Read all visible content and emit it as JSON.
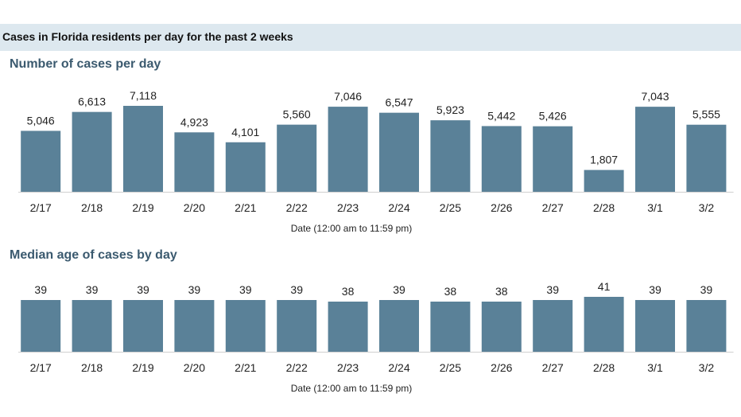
{
  "header": {
    "title": "Cases in Florida residents per day for the past 2 weeks"
  },
  "colors": {
    "bar": "#5a8198",
    "header_band": "#dde8ef",
    "section_title": "#3b5a6f"
  },
  "chart_data": [
    {
      "type": "bar",
      "title": "Number of cases per day",
      "xlabel": "Date (12:00 am to 11:59 pm)",
      "ylabel": "",
      "categories": [
        "2/17",
        "2/18",
        "2/19",
        "2/20",
        "2/21",
        "2/22",
        "2/23",
        "2/24",
        "2/25",
        "2/26",
        "2/27",
        "2/28",
        "3/1",
        "3/2"
      ],
      "values": [
        5046,
        6613,
        7118,
        4923,
        4101,
        5560,
        7046,
        6547,
        5923,
        5442,
        5426,
        1807,
        7043,
        5555
      ],
      "value_labels": [
        "5,046",
        "6,613",
        "7,118",
        "4,923",
        "4,101",
        "5,560",
        "7,046",
        "6,547",
        "5,923",
        "5,442",
        "5,426",
        "1,807",
        "7,043",
        "5,555"
      ],
      "ylim": [
        0,
        7118
      ],
      "grid": false
    },
    {
      "type": "bar",
      "title": "Median age of cases by day",
      "xlabel": "Date (12:00 am to 11:59 pm)",
      "ylabel": "",
      "categories": [
        "2/17",
        "2/18",
        "2/19",
        "2/20",
        "2/21",
        "2/22",
        "2/23",
        "2/24",
        "2/25",
        "2/26",
        "2/27",
        "2/28",
        "3/1",
        "3/2"
      ],
      "values": [
        39,
        39,
        39,
        39,
        39,
        39,
        38,
        39,
        38,
        38,
        39,
        41,
        39,
        39
      ],
      "value_labels": [
        "39",
        "39",
        "39",
        "39",
        "39",
        "39",
        "38",
        "39",
        "38",
        "38",
        "39",
        "41",
        "39",
        "39"
      ],
      "ylim": [
        0,
        41
      ],
      "grid": false
    }
  ]
}
